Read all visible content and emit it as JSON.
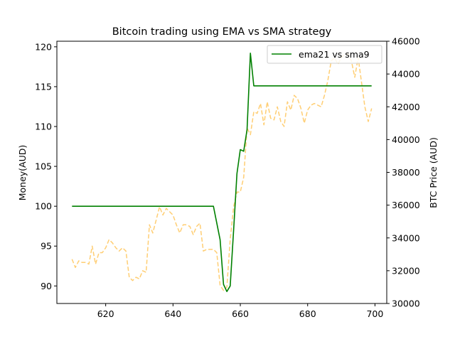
{
  "chart_data": {
    "type": "line",
    "title": "Bitcoin trading using EMA vs SMA strategy",
    "xlabel": "",
    "ylabel_left": "Money(AUD)",
    "ylabel_right": "BTC Price (AUD)",
    "xlim": [
      605.5,
      703.5
    ],
    "ylim_left": [
      87.8,
      120.7
    ],
    "ylim_right": [
      30000,
      46000
    ],
    "x_ticks": [
      "620",
      "640",
      "660",
      "680",
      "700"
    ],
    "y_left_ticks": [
      "90",
      "95",
      "100",
      "105",
      "110",
      "115",
      "120"
    ],
    "y_right_ticks": [
      "30000",
      "32000",
      "34000",
      "36000",
      "38000",
      "40000",
      "42000",
      "44000",
      "46000"
    ],
    "legend_position": "top-right",
    "series": [
      {
        "name": "ema21 vs sma9",
        "axis": "left",
        "color": "#008000",
        "style": "solid",
        "x": [
          610,
          652,
          654,
          655,
          656,
          657,
          658,
          659,
          660,
          661,
          662,
          663,
          664,
          699
        ],
        "values": [
          100,
          100,
          95.8,
          90.2,
          89.3,
          90.0,
          97.0,
          104.1,
          107.1,
          106.9,
          109.6,
          119.2,
          115.1,
          115.1
        ]
      },
      {
        "axis": "right",
        "color": "#FFA500",
        "style": "dashed",
        "x": [
          610,
          611,
          612,
          613,
          614,
          615,
          616,
          617,
          618,
          619,
          620,
          621,
          622,
          623,
          624,
          625,
          626,
          627,
          628,
          629,
          630,
          631,
          632,
          633,
          634,
          635,
          636,
          637,
          638,
          639,
          640,
          641,
          642,
          643,
          644,
          645,
          646,
          647,
          648,
          649,
          650,
          651,
          652,
          653,
          654,
          655,
          656,
          657,
          658,
          659,
          660,
          661,
          662,
          663,
          664,
          665,
          666,
          667,
          668,
          669,
          670,
          671,
          672,
          673,
          674,
          675,
          676,
          677,
          678,
          679,
          680,
          681,
          682,
          683,
          684,
          685,
          686,
          687,
          688,
          689,
          690,
          691,
          692,
          693,
          694,
          695,
          696,
          697,
          698,
          699
        ],
        "values": [
          32700,
          32200,
          32600,
          32500,
          32500,
          32400,
          33500,
          32400,
          33100,
          33100,
          33400,
          33900,
          33700,
          33400,
          33200,
          33400,
          33200,
          31600,
          31400,
          31600,
          31500,
          32000,
          31900,
          34800,
          34300,
          35100,
          35900,
          35400,
          35800,
          35600,
          35400,
          34800,
          34300,
          34800,
          34800,
          34700,
          34200,
          34700,
          34900,
          33200,
          33300,
          33300,
          33300,
          33100,
          31100,
          30800,
          31000,
          33900,
          35900,
          36800,
          36800,
          37700,
          40700,
          40300,
          41700,
          41600,
          42200,
          40900,
          42300,
          41300,
          41200,
          42000,
          41100,
          40800,
          42300,
          41800,
          42700,
          42500,
          41900,
          41000,
          41800,
          42100,
          42200,
          42100,
          42000,
          42700,
          43600,
          44800,
          45000,
          44600,
          45000,
          45200,
          45200,
          44800,
          43800,
          45000,
          43500,
          42000,
          41100,
          41900
        ]
      }
    ]
  }
}
